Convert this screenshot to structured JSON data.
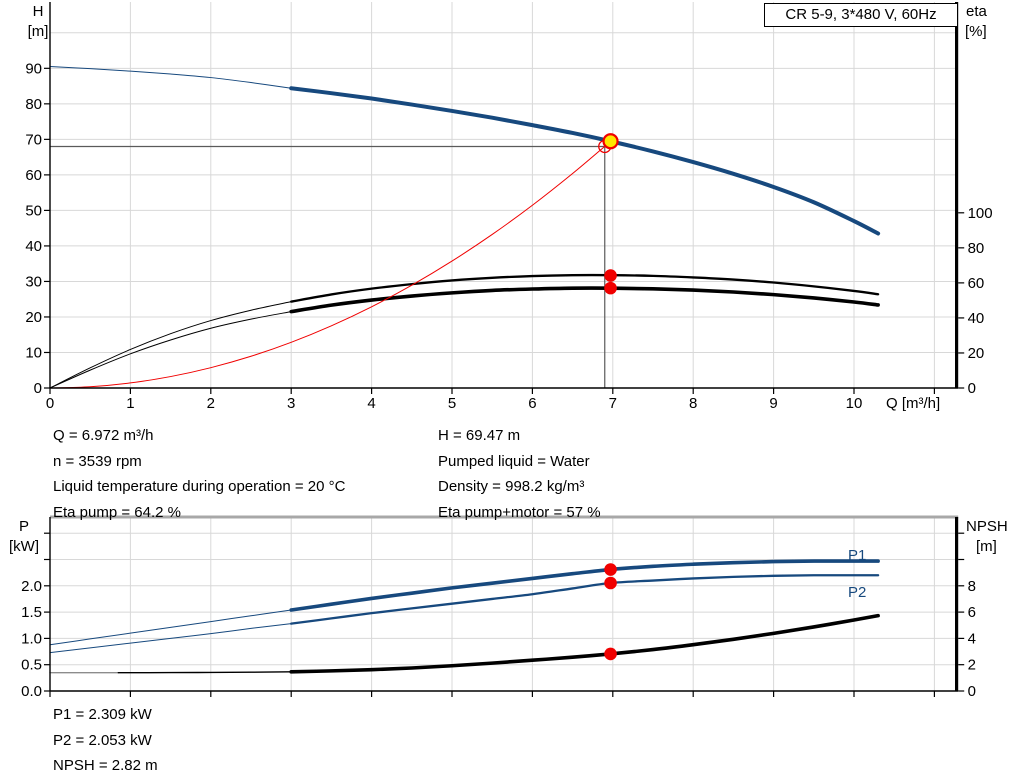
{
  "header": {
    "title_box": "CR 5-9, 3*480 V, 60Hz"
  },
  "colors": {
    "curve_blue": "#17497E",
    "curve_red": "#F00000",
    "curve_black": "#000000",
    "curve_gray": "#8C8C8C",
    "grid": "#D8D8D8",
    "crosshair": "#5A5A5A",
    "marker_yellow": "#FFE600",
    "marker_red": "#F00000",
    "axis_black": "#000000",
    "top_border_gray": "#A8A8A8"
  },
  "info_top": {
    "left": [
      "Q = 6.972 m³/h",
      "n = 3539 rpm",
      "Liquid temperature during operation = 20 °C",
      "Eta pump = 64.2 %"
    ],
    "right": [
      "H = 69.47 m",
      "Pumped liquid = Water",
      "Density = 998.2 kg/m³",
      "Eta pump+motor = 57 %"
    ]
  },
  "info_bottom": [
    "P1 = 2.309 kW",
    "P2 = 2.053 kW",
    "NPSH = 2.82 m"
  ],
  "chart_data": [
    {
      "type": "line",
      "name": "qh-eta-chart",
      "xlabel": "Q [m³/h]",
      "ylabel_left": [
        "H",
        "[m]"
      ],
      "ylabel_right": [
        "eta",
        "[%]"
      ],
      "xlim": [
        0,
        11.3
      ],
      "ylim_left": [
        0,
        108
      ],
      "ylim_right": [
        0,
        220
      ],
      "legend": "none",
      "grid": true,
      "x_ticks": {
        "values": [
          0,
          1,
          2,
          3,
          4,
          5,
          6,
          7,
          8,
          9,
          10
        ],
        "labels": [
          "0",
          "1",
          "2",
          "3",
          "4",
          "5",
          "6",
          "7",
          "8",
          "9",
          "10"
        ]
      },
      "x_ticks_unlabeled": [
        11
      ],
      "x_grid": [
        1,
        2,
        3,
        4,
        5,
        6,
        7,
        8,
        9,
        10,
        11
      ],
      "y_ticks_left": {
        "scale": "H",
        "values": [
          0,
          10,
          20,
          30,
          40,
          50,
          60,
          70,
          80,
          90
        ],
        "labels": [
          "0",
          "10",
          "20",
          "30",
          "40",
          "50",
          "60",
          "70",
          "80",
          "90"
        ]
      },
      "y_ticks_left_unlabeled": [],
      "y_grid": {
        "scale": "H",
        "values": [
          10,
          20,
          30,
          40,
          50,
          60,
          70,
          80,
          90,
          100
        ]
      },
      "y_ticks_right": {
        "scale": "eta",
        "values": [
          0,
          20,
          40,
          60,
          80,
          100
        ],
        "labels": [
          "0",
          "20",
          "40",
          "60",
          "80",
          "100"
        ]
      },
      "y_ticks_right_unlabeled": [],
      "duty_point": {
        "Q": 6.972,
        "H": 69.47,
        "eta_pump": 64.2,
        "eta_pump_motor": 57
      },
      "crosshair": {
        "Q": 6.9,
        "H": 68.0
      },
      "series": [
        {
          "name": "head-curve",
          "scale": "H",
          "color": "blue",
          "parts": [
            {
              "from": 0,
              "to": 3,
              "width": 1
            },
            {
              "from": 3,
              "to": 10.3,
              "width": 4
            }
          ],
          "points": [
            [
              0,
              90.5
            ],
            [
              0.5,
              89.9
            ],
            [
              1,
              89.2
            ],
            [
              1.5,
              88.4
            ],
            [
              2,
              87.4
            ],
            [
              2.5,
              86.0
            ],
            [
              3,
              84.4
            ],
            [
              3.5,
              83.0
            ],
            [
              4,
              81.5
            ],
            [
              4.5,
              79.8
            ],
            [
              5,
              78.0
            ],
            [
              5.5,
              76.1
            ],
            [
              6,
              74.0
            ],
            [
              6.5,
              71.8
            ],
            [
              6.972,
              69.47
            ],
            [
              7.5,
              66.6
            ],
            [
              8,
              63.6
            ],
            [
              8.5,
              60.3
            ],
            [
              9,
              56.6
            ],
            [
              9.5,
              52.3
            ],
            [
              10,
              47.0
            ],
            [
              10.3,
              43.5
            ]
          ]
        },
        {
          "name": "eta-pump-curve",
          "scale": "eta",
          "color": "black",
          "parts": [
            {
              "from": 0,
              "to": 3,
              "width": 1
            },
            {
              "from": 3,
              "to": 10.3,
              "width": 2.3
            }
          ],
          "points": [
            [
              0,
              0
            ],
            [
              0.5,
              11.5
            ],
            [
              1,
              22
            ],
            [
              1.5,
              31
            ],
            [
              2,
              38.5
            ],
            [
              2.5,
              44.4
            ],
            [
              3,
              49.3
            ],
            [
              3.5,
              53.4
            ],
            [
              4,
              56.7
            ],
            [
              4.5,
              59.3
            ],
            [
              5,
              61.4
            ],
            [
              5.5,
              62.9
            ],
            [
              6,
              63.9
            ],
            [
              6.5,
              64.4
            ],
            [
              7,
              64.4
            ],
            [
              7.5,
              64.0
            ],
            [
              8,
              63.1
            ],
            [
              8.5,
              61.9
            ],
            [
              9,
              60.2
            ],
            [
              9.5,
              58.0
            ],
            [
              10,
              55.4
            ],
            [
              10.3,
              53.5
            ]
          ]
        },
        {
          "name": "eta-pump-motor-curve",
          "scale": "eta",
          "color": "black",
          "parts": [
            {
              "from": 0,
              "to": 3,
              "width": 1
            },
            {
              "from": 3,
              "to": 10.3,
              "width": 3.6
            }
          ],
          "points": [
            [
              0,
              0
            ],
            [
              0.5,
              10.2
            ],
            [
              1,
              19.5
            ],
            [
              1.5,
              27.4
            ],
            [
              2,
              34.1
            ],
            [
              2.5,
              39.3
            ],
            [
              3,
              43.6
            ],
            [
              3.5,
              47.3
            ],
            [
              4,
              50.2
            ],
            [
              4.5,
              52.5
            ],
            [
              5,
              54.3
            ],
            [
              5.5,
              55.7
            ],
            [
              6,
              56.5
            ],
            [
              6.5,
              57.0
            ],
            [
              7,
              57.0
            ],
            [
              7.5,
              56.6
            ],
            [
              8,
              55.9
            ],
            [
              8.5,
              54.8
            ],
            [
              9,
              53.3
            ],
            [
              9.5,
              51.4
            ],
            [
              10,
              49.1
            ],
            [
              10.3,
              47.4
            ]
          ]
        },
        {
          "name": "system-curve",
          "scale": "H",
          "color": "red",
          "parts": [
            {
              "from": 0,
              "to": 6.972,
              "width": 1
            }
          ],
          "points": [
            [
              0,
              0
            ],
            [
              0.5,
              0.36
            ],
            [
              1,
              1.43
            ],
            [
              1.5,
              3.22
            ],
            [
              2,
              5.72
            ],
            [
              2.5,
              8.93
            ],
            [
              3,
              12.86
            ],
            [
              3.5,
              17.51
            ],
            [
              4,
              22.87
            ],
            [
              4.5,
              28.94
            ],
            [
              5,
              35.73
            ],
            [
              5.5,
              43.23
            ],
            [
              6,
              51.45
            ],
            [
              6.5,
              60.39
            ],
            [
              6.9,
              68.04
            ],
            [
              6.972,
              69.47
            ]
          ]
        }
      ],
      "markers": [
        {
          "name": "system-intersection-marker",
          "type": "ring",
          "stroke": "red",
          "r": 6,
          "sw": 1.3,
          "Q": 6.9,
          "scale": "H",
          "v": 68.0
        },
        {
          "name": "eta-pump-marker",
          "type": "dot",
          "fill": "red",
          "r": 6.3,
          "Q": 6.972,
          "scale": "eta",
          "v": 64.2
        },
        {
          "name": "eta-pump-motor-marker",
          "type": "dot",
          "fill": "red",
          "r": 6.3,
          "Q": 6.972,
          "scale": "eta",
          "v": 57
        },
        {
          "name": "duty-point-marker",
          "type": "dot",
          "fill": "yellow",
          "stroke": "red",
          "sw": 2.2,
          "r": 7,
          "Q": 6.972,
          "scale": "H",
          "v": 69.47
        }
      ]
    },
    {
      "type": "line",
      "name": "power-npsh-chart",
      "xlabel": "",
      "ylabel_left": [
        "P",
        "[kW]"
      ],
      "ylabel_right": [
        "NPSH",
        "[m]"
      ],
      "xlim": [
        0,
        11.3
      ],
      "ylim_left": [
        0,
        3.3
      ],
      "ylim_right": [
        0,
        13.2
      ],
      "legend": "P1 and P2 labels at right of curves",
      "grid": true,
      "curve_labels": [
        {
          "text": "P1"
        },
        {
          "text": "P2"
        }
      ],
      "x_ticks": {
        "values": [],
        "labels": []
      },
      "x_ticks_unlabeled": [
        0,
        1,
        2,
        3,
        4,
        5,
        6,
        7,
        8,
        9,
        10,
        11
      ],
      "x_grid": [
        1,
        2,
        3,
        4,
        5,
        6,
        7,
        8,
        9,
        10,
        11
      ],
      "y_ticks_left": {
        "scale": "P",
        "values": [
          0,
          0.5,
          1,
          1.5,
          2
        ],
        "labels": [
          "0.0",
          "0.5",
          "1.0",
          "1.5",
          "2.0"
        ]
      },
      "y_ticks_left_unlabeled": [
        2.5,
        3
      ],
      "y_grid": {
        "scale": "P",
        "values": [
          0.5,
          1,
          1.5,
          2,
          2.5,
          3
        ]
      },
      "y_ticks_right": {
        "scale": "N",
        "values": [
          0,
          2,
          4,
          6,
          8
        ],
        "labels": [
          "0",
          "2",
          "4",
          "6",
          "8"
        ]
      },
      "y_ticks_right_unlabeled": [
        10,
        12
      ],
      "duty_point": {
        "Q": 6.972,
        "P1": 2.309,
        "P2": 2.053,
        "NPSH": 2.82
      },
      "series": [
        {
          "name": "p1-curve",
          "scale": "P",
          "color": "blue",
          "parts": [
            {
              "from": 0,
              "to": 3,
              "width": 1
            },
            {
              "from": 3,
              "to": 10.3,
              "width": 3.6
            }
          ],
          "points": [
            [
              0,
              0.88
            ],
            [
              0.5,
              0.99
            ],
            [
              1,
              1.1
            ],
            [
              1.5,
              1.21
            ],
            [
              2,
              1.32
            ],
            [
              2.5,
              1.43
            ],
            [
              3,
              1.54
            ],
            [
              3.5,
              1.65
            ],
            [
              4,
              1.76
            ],
            [
              4.5,
              1.86
            ],
            [
              5,
              1.96
            ],
            [
              5.5,
              2.05
            ],
            [
              6,
              2.14
            ],
            [
              6.5,
              2.23
            ],
            [
              6.972,
              2.309
            ],
            [
              7.5,
              2.37
            ],
            [
              8,
              2.41
            ],
            [
              8.5,
              2.44
            ],
            [
              9,
              2.46
            ],
            [
              9.5,
              2.47
            ],
            [
              10,
              2.47
            ],
            [
              10.3,
              2.47
            ]
          ]
        },
        {
          "name": "p2-curve",
          "scale": "P",
          "color": "blue",
          "parts": [
            {
              "from": 0,
              "to": 3,
              "width": 1
            },
            {
              "from": 3,
              "to": 10.3,
              "width": 2.3
            }
          ],
          "points": [
            [
              0,
              0.73
            ],
            [
              0.5,
              0.82
            ],
            [
              1,
              0.91
            ],
            [
              1.5,
              1.0
            ],
            [
              2,
              1.09
            ],
            [
              2.5,
              1.19
            ],
            [
              3,
              1.28
            ],
            [
              3.5,
              1.38
            ],
            [
              4,
              1.48
            ],
            [
              4.5,
              1.57
            ],
            [
              5,
              1.66
            ],
            [
              5.5,
              1.75
            ],
            [
              6,
              1.84
            ],
            [
              6.5,
              1.95
            ],
            [
              6.972,
              2.053
            ],
            [
              7.5,
              2.1
            ],
            [
              8,
              2.14
            ],
            [
              8.5,
              2.17
            ],
            [
              9,
              2.19
            ],
            [
              9.5,
              2.2
            ],
            [
              10,
              2.2
            ],
            [
              10.3,
              2.2
            ]
          ]
        },
        {
          "name": "npsh-curve",
          "scale": "N",
          "color": "black",
          "parts": [
            {
              "from": 0,
              "to": 0.85,
              "width": 1.4,
              "color": "gray"
            },
            {
              "from": 0.85,
              "to": 3,
              "width": 1.4
            },
            {
              "from": 3,
              "to": 10.3,
              "width": 3.6
            }
          ],
          "points": [
            [
              0,
              1.39
            ],
            [
              0.85,
              1.39
            ],
            [
              1.5,
              1.4
            ],
            [
              2,
              1.41
            ],
            [
              2.5,
              1.43
            ],
            [
              3,
              1.46
            ],
            [
              3.5,
              1.53
            ],
            [
              4,
              1.62
            ],
            [
              4.5,
              1.75
            ],
            [
              5,
              1.92
            ],
            [
              5.5,
              2.12
            ],
            [
              6,
              2.34
            ],
            [
              6.5,
              2.57
            ],
            [
              6.972,
              2.82
            ],
            [
              7.5,
              3.15
            ],
            [
              8,
              3.52
            ],
            [
              8.5,
              3.93
            ],
            [
              9,
              4.38
            ],
            [
              9.5,
              4.87
            ],
            [
              10,
              5.4
            ],
            [
              10.3,
              5.73
            ]
          ]
        }
      ],
      "markers": [
        {
          "name": "p1-marker",
          "type": "dot",
          "fill": "red",
          "r": 6.3,
          "Q": 6.972,
          "scale": "P",
          "v": 2.309
        },
        {
          "name": "p2-marker",
          "type": "dot",
          "fill": "red",
          "r": 6.3,
          "Q": 6.972,
          "scale": "P",
          "v": 2.053
        },
        {
          "name": "npsh-marker",
          "type": "dot",
          "fill": "red",
          "r": 6.3,
          "Q": 6.972,
          "scale": "N",
          "v": 2.82
        }
      ]
    }
  ]
}
